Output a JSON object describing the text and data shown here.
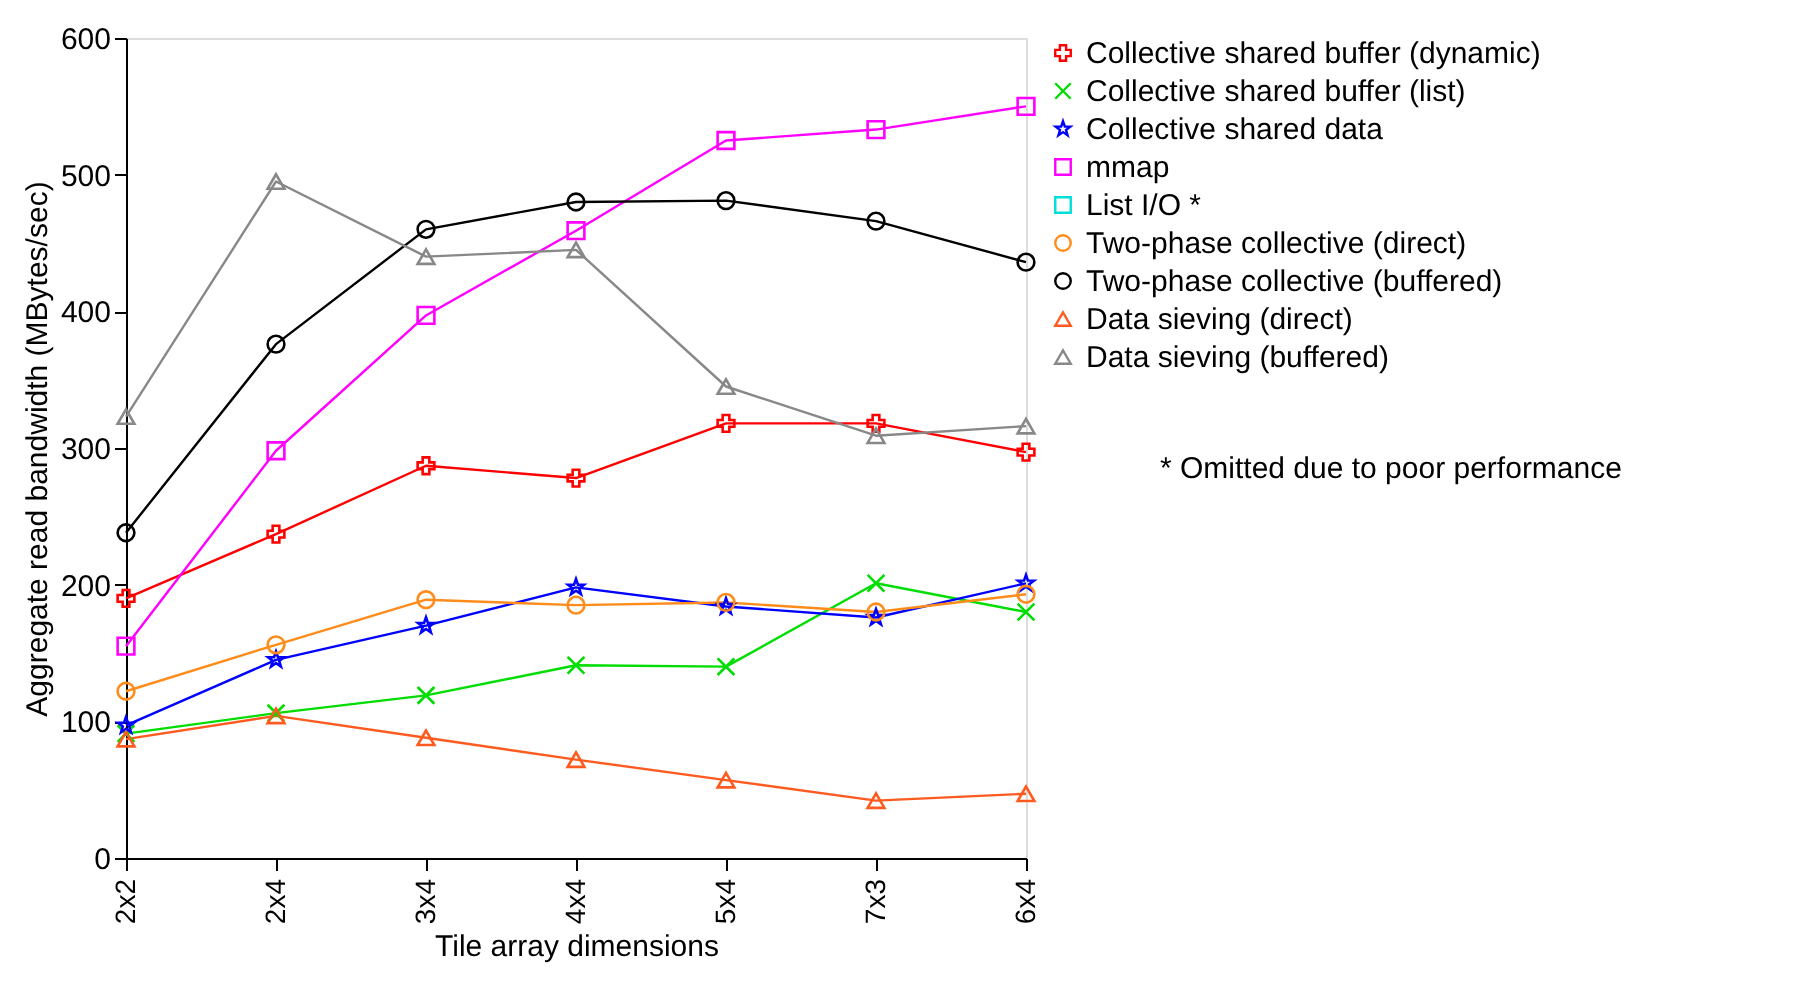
{
  "chart_data": {
    "type": "line",
    "xlabel": "Tile array dimensions",
    "ylabel": "Aggregate read bandwidth (MBytes/sec)",
    "categories": [
      "2x2",
      "2x4",
      "3x4",
      "4x4",
      "5x4",
      "7x3",
      "6x4"
    ],
    "ylim": [
      0,
      600
    ],
    "yticks": [
      0,
      100,
      200,
      300,
      400,
      500,
      600
    ],
    "grid": false,
    "legend": "right",
    "annotations": [
      "* Omitted due to poor performance"
    ],
    "series": [
      {
        "name": "Collective shared buffer (dynamic)",
        "color": "#ff0000",
        "marker": "cross",
        "values": [
          190,
          237,
          287,
          278,
          318,
          318,
          297
        ]
      },
      {
        "name": "Collective shared buffer (list)",
        "color": "#00dd00",
        "marker": "x",
        "values": [
          91,
          106,
          119,
          141,
          140,
          201,
          180
        ]
      },
      {
        "name": "Collective shared data",
        "color": "#0000ff",
        "marker": "star",
        "values": [
          97,
          145,
          170,
          198,
          184,
          176,
          201
        ]
      },
      {
        "name": "mmap",
        "color": "#ff00ff",
        "marker": "square",
        "values": [
          155,
          298,
          397,
          459,
          525,
          533,
          550
        ]
      },
      {
        "name": "List I/O *",
        "color": "#00dddd",
        "marker": "square",
        "values": [
          null,
          null,
          null,
          null,
          null,
          null,
          null
        ]
      },
      {
        "name": "Two-phase collective (direct)",
        "color": "#ff8c1a",
        "marker": "circle",
        "values": [
          122,
          156,
          189,
          185,
          187,
          180,
          193
        ]
      },
      {
        "name": "Two-phase collective (buffered)",
        "color": "#000000",
        "marker": "circle",
        "values": [
          238,
          376,
          460,
          480,
          481,
          466,
          436
        ]
      },
      {
        "name": "Data sieving (direct)",
        "color": "#ff5a1f",
        "marker": "triangle",
        "values": [
          87,
          104,
          88,
          72,
          57,
          42,
          47
        ]
      },
      {
        "name": "Data sieving (buffered)",
        "color": "#888888",
        "marker": "triangle",
        "values": [
          323,
          495,
          440,
          445,
          345,
          309,
          316
        ]
      }
    ]
  }
}
